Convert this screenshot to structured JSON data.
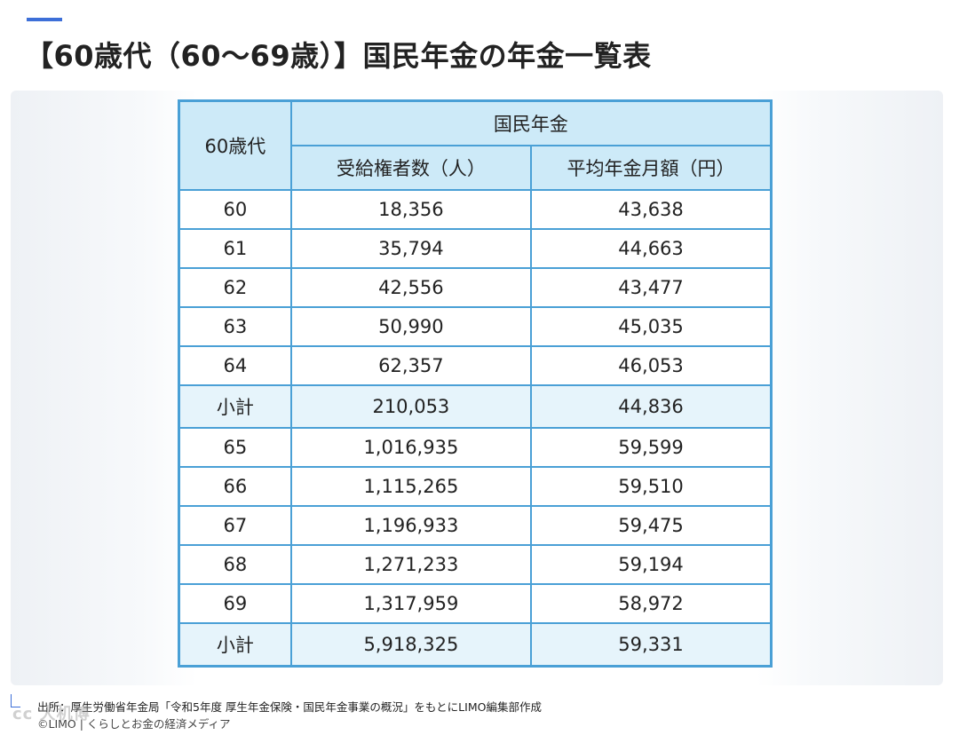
{
  "title": "【60歳代（60〜69歳）】国民年金の年金一覧表",
  "table": {
    "age_header": "60歳代",
    "group_header": "国民年金",
    "col_recipients": "受給権者数（人）",
    "col_average": "平均年金月額（円）",
    "rows": [
      {
        "age": "60",
        "recipients": "18,356",
        "average": "43,638"
      },
      {
        "age": "61",
        "recipients": "35,794",
        "average": "44,663"
      },
      {
        "age": "62",
        "recipients": "42,556",
        "average": "43,477"
      },
      {
        "age": "63",
        "recipients": "50,990",
        "average": "45,035"
      },
      {
        "age": "64",
        "recipients": "62,357",
        "average": "46,053"
      },
      {
        "age": "小計",
        "recipients": "210,053",
        "average": "44,836"
      },
      {
        "age": "65",
        "recipients": "1,016,935",
        "average": "59,599"
      },
      {
        "age": "66",
        "recipients": "1,115,265",
        "average": "59,510"
      },
      {
        "age": "67",
        "recipients": "1,196,933",
        "average": "59,475"
      },
      {
        "age": "68",
        "recipients": "1,271,233",
        "average": "59,194"
      },
      {
        "age": "69",
        "recipients": "1,317,959",
        "average": "58,972"
      },
      {
        "age": "小計",
        "recipients": "5,918,325",
        "average": "59,331"
      }
    ]
  },
  "source": "出所：厚生労働省年金局「令和5年度 厚生年金保険・国民年金事業の概況」をもとにLIMO編集部作成",
  "copyright": "©LIMO | くらしとお金の経済メディア",
  "watermark": "cc 大机博"
}
